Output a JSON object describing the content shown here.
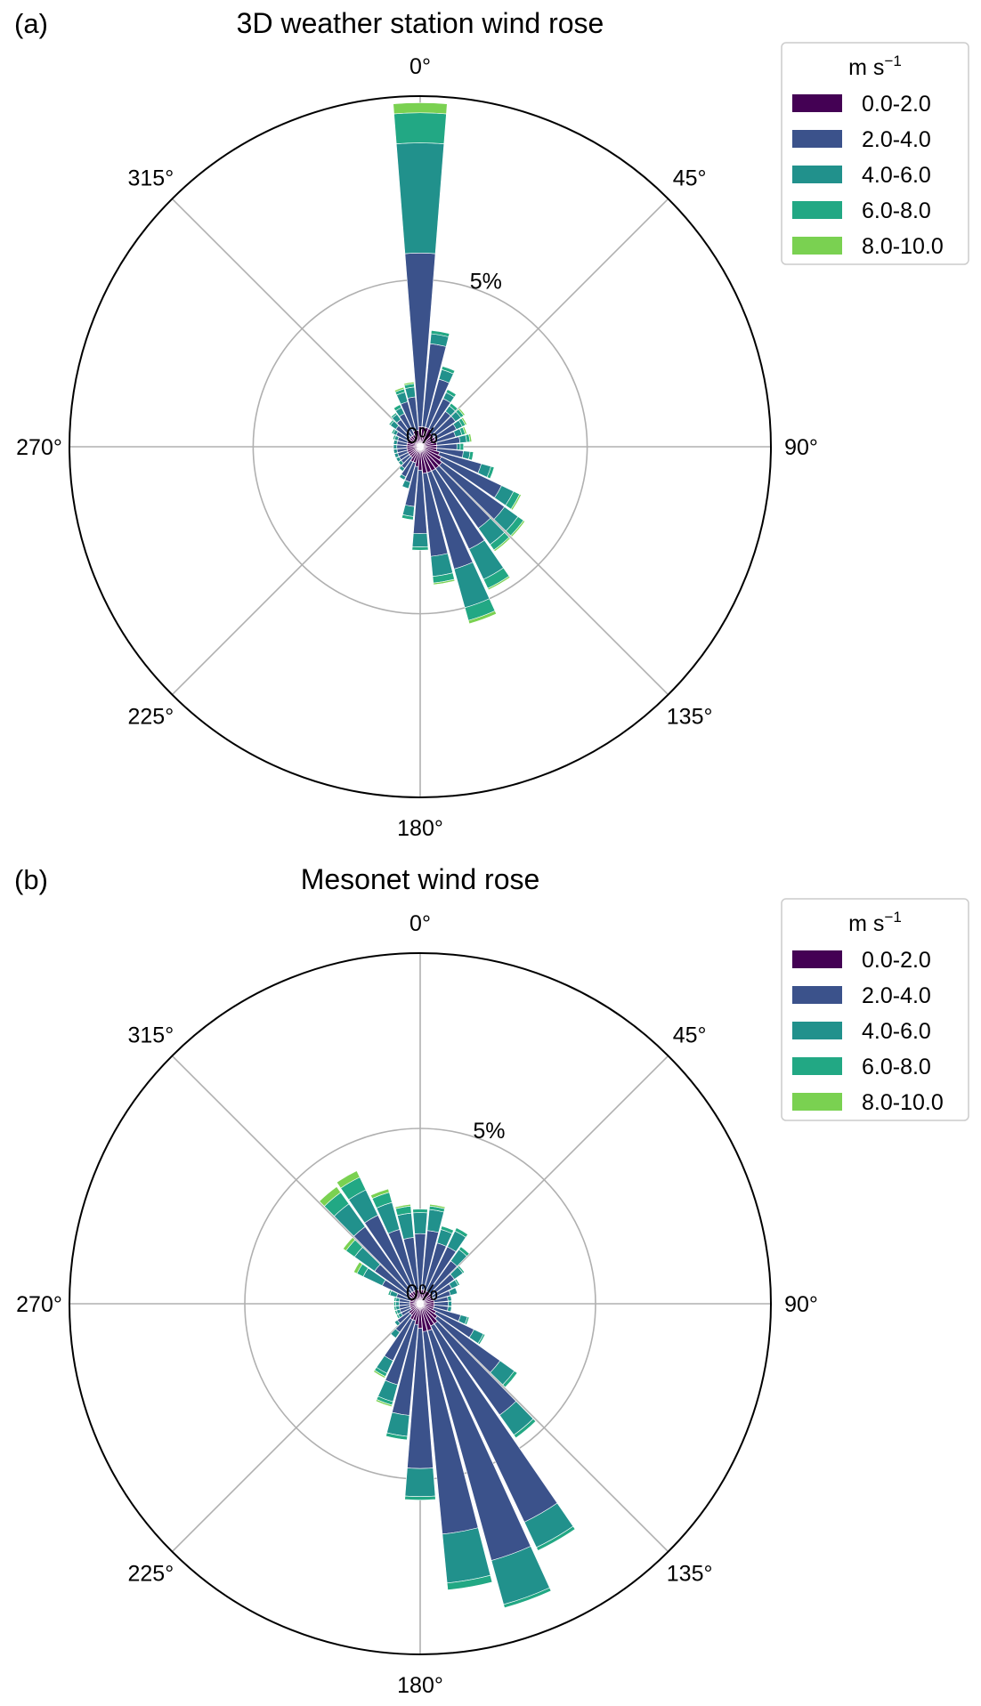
{
  "colors": {
    "bins": [
      "#440154",
      "#3b528b",
      "#21918c",
      "#22a884",
      "#7ad151"
    ],
    "grid": "#b0b0b0",
    "frame": "#000000",
    "legend_border": "#cccccc"
  },
  "legend": {
    "title_base": "m s",
    "title_exp": "−1",
    "entries": [
      "0.0-2.0",
      "2.0-4.0",
      "4.0-6.0",
      "6.0-8.0",
      "8.0-10.0"
    ]
  },
  "angle_labels": [
    "0°",
    "45°",
    "90°",
    "135°",
    "180°",
    "225°",
    "270°",
    "315°"
  ],
  "chart_data": [
    {
      "type": "bar",
      "subtype": "polar-stacked-windrose",
      "panel_label": "(a)",
      "title": "3D weather station wind rose",
      "angle_zero": "north",
      "angle_direction": "clockwise",
      "radial_unit": "%",
      "radial_ticks": [
        {
          "value": 0,
          "label": "0%"
        },
        {
          "value": 5,
          "label": "5%"
        }
      ],
      "rmax": 10.5,
      "bin_width_deg": 9,
      "series_names": [
        "0.0-2.0",
        "2.0-4.0",
        "4.0-6.0",
        "6.0-8.0",
        "8.0-10.0"
      ],
      "directions": [
        {
          "dir": 0,
          "values": [
            0.6,
            5.2,
            3.3,
            0.9,
            0.3
          ]
        },
        {
          "dir": 10,
          "values": [
            0.6,
            2.5,
            0.3,
            0.1,
            0.0
          ]
        },
        {
          "dir": 20,
          "values": [
            0.6,
            1.5,
            0.3,
            0.1,
            0.0
          ]
        },
        {
          "dir": 30,
          "values": [
            0.6,
            1.0,
            0.2,
            0.1,
            0.0
          ]
        },
        {
          "dir": 40,
          "values": [
            0.5,
            0.8,
            0.2,
            0.1,
            0.0
          ]
        },
        {
          "dir": 50,
          "values": [
            0.5,
            0.8,
            0.2,
            0.1,
            0.05
          ]
        },
        {
          "dir": 60,
          "values": [
            0.5,
            0.7,
            0.2,
            0.1,
            0.05
          ]
        },
        {
          "dir": 70,
          "values": [
            0.5,
            0.6,
            0.2,
            0.1,
            0.05
          ]
        },
        {
          "dir": 80,
          "values": [
            0.5,
            0.7,
            0.2,
            0.1,
            0.05
          ]
        },
        {
          "dir": 90,
          "values": [
            0.5,
            0.6,
            0.1,
            0.1,
            0.0
          ]
        },
        {
          "dir": 100,
          "values": [
            0.5,
            0.8,
            0.2,
            0.1,
            0.0
          ]
        },
        {
          "dir": 110,
          "values": [
            0.6,
            1.3,
            0.3,
            0.1,
            0.0
          ]
        },
        {
          "dir": 120,
          "values": [
            0.7,
            2.0,
            0.4,
            0.2,
            0.05
          ]
        },
        {
          "dir": 130,
          "values": [
            0.8,
            2.3,
            0.5,
            0.2,
            0.05
          ]
        },
        {
          "dir": 140,
          "values": [
            0.8,
            2.2,
            0.6,
            0.2,
            0.05
          ]
        },
        {
          "dir": 150,
          "values": [
            0.8,
            2.6,
            1.0,
            0.3,
            0.05
          ]
        },
        {
          "dir": 160,
          "values": [
            0.8,
            3.0,
            1.2,
            0.4,
            0.1
          ]
        },
        {
          "dir": 170,
          "values": [
            0.8,
            2.5,
            0.6,
            0.2,
            0.05
          ]
        },
        {
          "dir": 180,
          "values": [
            0.7,
            1.9,
            0.4,
            0.1,
            0.0
          ]
        },
        {
          "dir": 190,
          "values": [
            0.6,
            1.2,
            0.3,
            0.1,
            0.0
          ]
        },
        {
          "dir": 200,
          "values": [
            0.5,
            0.6,
            0.2,
            0.0,
            0.0
          ]
        },
        {
          "dir": 210,
          "values": [
            0.5,
            0.5,
            0.1,
            0.0,
            0.0
          ]
        },
        {
          "dir": 220,
          "values": [
            0.4,
            0.4,
            0.1,
            0.0,
            0.0
          ]
        },
        {
          "dir": 230,
          "values": [
            0.4,
            0.3,
            0.1,
            0.0,
            0.0
          ]
        },
        {
          "dir": 240,
          "values": [
            0.4,
            0.3,
            0.1,
            0.0,
            0.0
          ]
        },
        {
          "dir": 250,
          "values": [
            0.4,
            0.3,
            0.1,
            0.0,
            0.0
          ]
        },
        {
          "dir": 260,
          "values": [
            0.4,
            0.3,
            0.1,
            0.0,
            0.0
          ]
        },
        {
          "dir": 270,
          "values": [
            0.4,
            0.3,
            0.1,
            0.0,
            0.0
          ]
        },
        {
          "dir": 280,
          "values": [
            0.4,
            0.3,
            0.1,
            0.0,
            0.0
          ]
        },
        {
          "dir": 290,
          "values": [
            0.4,
            0.3,
            0.1,
            0.05,
            0.0
          ]
        },
        {
          "dir": 300,
          "values": [
            0.4,
            0.4,
            0.1,
            0.05,
            0.0
          ]
        },
        {
          "dir": 310,
          "values": [
            0.4,
            0.5,
            0.2,
            0.05,
            0.0
          ]
        },
        {
          "dir": 320,
          "values": [
            0.4,
            0.6,
            0.2,
            0.05,
            0.0
          ]
        },
        {
          "dir": 330,
          "values": [
            0.4,
            0.7,
            0.2,
            0.1,
            0.0
          ]
        },
        {
          "dir": 340,
          "values": [
            0.5,
            0.9,
            0.3,
            0.1,
            0.05
          ]
        },
        {
          "dir": 350,
          "values": [
            0.5,
            1.0,
            0.3,
            0.1,
            0.05
          ]
        }
      ]
    },
    {
      "type": "bar",
      "subtype": "polar-stacked-windrose",
      "panel_label": "(b)",
      "title": "Mesonet wind rose",
      "angle_zero": "north",
      "angle_direction": "clockwise",
      "radial_unit": "%",
      "radial_ticks": [
        {
          "value": 0,
          "label": "0%"
        },
        {
          "value": 5,
          "label": "5%"
        }
      ],
      "rmax": 10.0,
      "bin_width_deg": 9,
      "series_names": [
        "0.0-2.0",
        "2.0-4.0",
        "4.0-6.0",
        "6.0-8.0",
        "8.0-10.0"
      ],
      "directions": [
        {
          "dir": 0,
          "values": [
            0.4,
            1.6,
            0.6,
            0.1,
            0.0
          ]
        },
        {
          "dir": 10,
          "values": [
            0.4,
            1.7,
            0.6,
            0.1,
            0.05
          ]
        },
        {
          "dir": 20,
          "values": [
            0.4,
            1.4,
            0.4,
            0.1,
            0.0
          ]
        },
        {
          "dir": 30,
          "values": [
            0.4,
            1.4,
            0.5,
            0.1,
            0.0
          ]
        },
        {
          "dir": 40,
          "values": [
            0.4,
            1.1,
            0.4,
            0.1,
            0.0
          ]
        },
        {
          "dir": 50,
          "values": [
            0.4,
            0.8,
            0.3,
            0.05,
            0.0
          ]
        },
        {
          "dir": 60,
          "values": [
            0.4,
            0.6,
            0.2,
            0.05,
            0.0
          ]
        },
        {
          "dir": 70,
          "values": [
            0.4,
            0.5,
            0.2,
            0.0,
            0.0
          ]
        },
        {
          "dir": 80,
          "values": [
            0.4,
            0.4,
            0.1,
            0.0,
            0.0
          ]
        },
        {
          "dir": 90,
          "values": [
            0.4,
            0.4,
            0.1,
            0.0,
            0.0
          ]
        },
        {
          "dir": 100,
          "values": [
            0.4,
            0.4,
            0.1,
            0.0,
            0.0
          ]
        },
        {
          "dir": 110,
          "values": [
            0.4,
            0.8,
            0.2,
            0.05,
            0.0
          ]
        },
        {
          "dir": 120,
          "values": [
            0.5,
            1.2,
            0.3,
            0.05,
            0.0
          ]
        },
        {
          "dir": 130,
          "values": [
            0.6,
            2.2,
            0.5,
            0.1,
            0.0
          ]
        },
        {
          "dir": 140,
          "values": [
            0.7,
            3.2,
            0.7,
            0.1,
            0.0
          ]
        },
        {
          "dir": 150,
          "values": [
            0.7,
            6.2,
            0.8,
            0.1,
            0.0
          ]
        },
        {
          "dir": 160,
          "values": [
            0.8,
            6.8,
            1.3,
            0.1,
            0.0
          ]
        },
        {
          "dir": 170,
          "values": [
            0.8,
            5.8,
            1.4,
            0.2,
            0.0
          ]
        },
        {
          "dir": 180,
          "values": [
            0.7,
            4.0,
            0.8,
            0.1,
            0.0
          ]
        },
        {
          "dir": 190,
          "values": [
            0.6,
            2.6,
            0.6,
            0.1,
            0.0
          ]
        },
        {
          "dir": 200,
          "values": [
            0.5,
            1.9,
            0.5,
            0.1,
            0.05
          ]
        },
        {
          "dir": 210,
          "values": [
            0.5,
            1.3,
            0.4,
            0.1,
            0.05
          ]
        },
        {
          "dir": 220,
          "values": [
            0.4,
            0.6,
            0.2,
            0.0,
            0.0
          ]
        },
        {
          "dir": 230,
          "values": [
            0.4,
            0.4,
            0.1,
            0.0,
            0.0
          ]
        },
        {
          "dir": 240,
          "values": [
            0.3,
            0.3,
            0.1,
            0.05,
            0.0
          ]
        },
        {
          "dir": 250,
          "values": [
            0.3,
            0.3,
            0.1,
            0.05,
            0.0
          ]
        },
        {
          "dir": 260,
          "values": [
            0.3,
            0.3,
            0.1,
            0.05,
            0.0
          ]
        },
        {
          "dir": 270,
          "values": [
            0.3,
            0.3,
            0.1,
            0.05,
            0.0
          ]
        },
        {
          "dir": 280,
          "values": [
            0.3,
            0.3,
            0.1,
            0.05,
            0.0
          ]
        },
        {
          "dir": 290,
          "values": [
            0.3,
            0.4,
            0.2,
            0.05,
            0.0
          ]
        },
        {
          "dir": 300,
          "values": [
            0.3,
            0.9,
            0.6,
            0.2,
            0.1
          ]
        },
        {
          "dir": 310,
          "values": [
            0.4,
            1.2,
            0.7,
            0.3,
            0.1
          ]
        },
        {
          "dir": 320,
          "values": [
            0.4,
            2.3,
            0.8,
            0.4,
            0.2
          ]
        },
        {
          "dir": 330,
          "values": [
            0.4,
            2.4,
            0.8,
            0.4,
            0.2
          ]
        },
        {
          "dir": 340,
          "values": [
            0.4,
            1.8,
            0.8,
            0.3,
            0.1
          ]
        },
        {
          "dir": 350,
          "values": [
            0.4,
            1.5,
            0.7,
            0.2,
            0.05
          ]
        }
      ]
    }
  ]
}
